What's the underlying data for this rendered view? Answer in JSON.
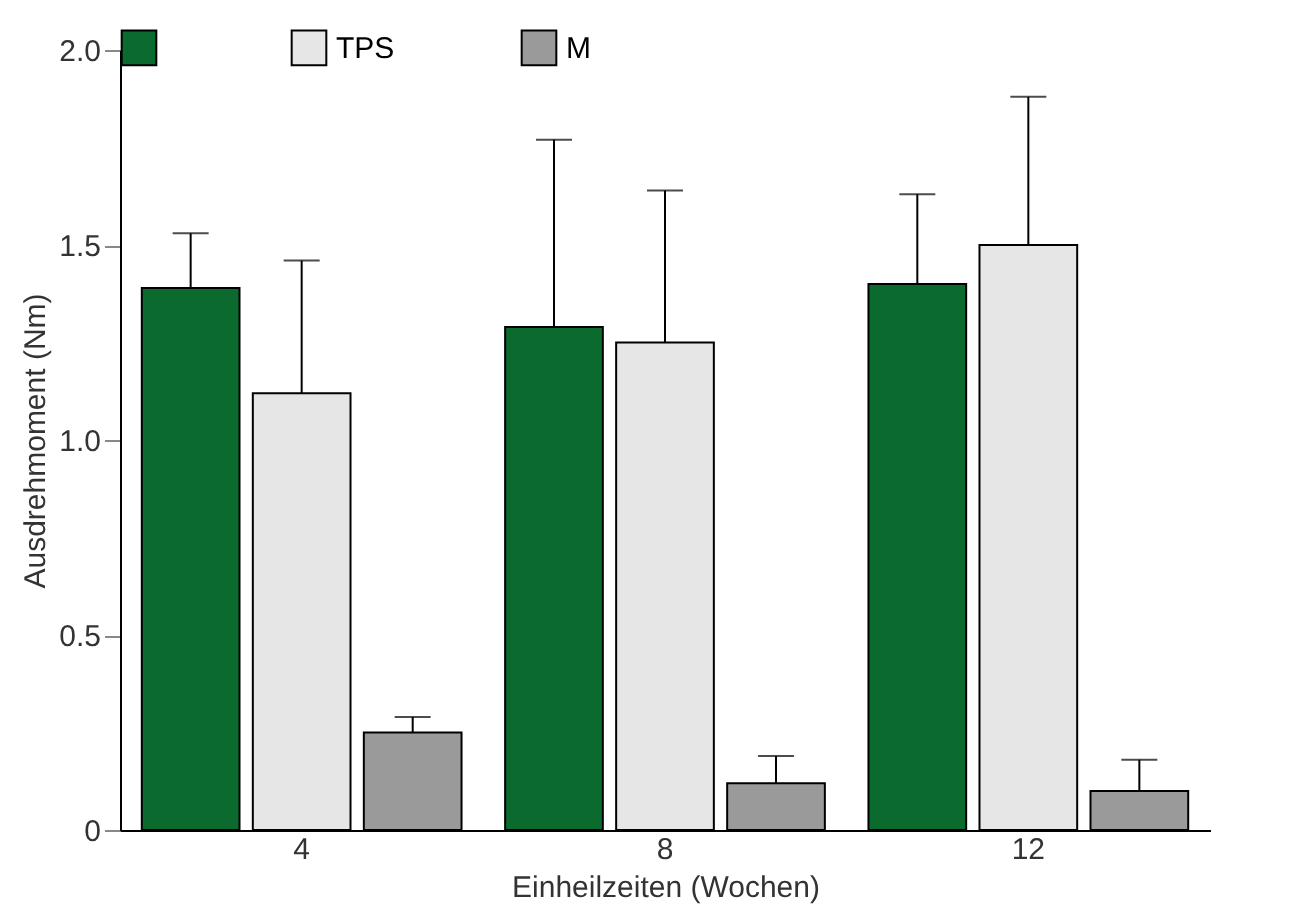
{
  "chart_data": {
    "type": "bar",
    "xlabel": "Einheilzeiten (Wochen)",
    "ylabel": "Ausdrehmoment (Nm)",
    "categories": [
      "4",
      "8",
      "12"
    ],
    "series": [
      {
        "color": "#0b6b2e",
        "values": [
          1.39,
          1.29,
          1.4
        ],
        "errors": [
          [
            1.39,
            1.53
          ],
          [
            1.29,
            1.77
          ],
          [
            1.4,
            1.63
          ]
        ]
      },
      {
        "name": "TPS",
        "color": "#e6e6e6",
        "values": [
          1.12,
          1.25,
          1.5
        ],
        "errors": [
          [
            1.12,
            1.46
          ],
          [
            1.25,
            1.64
          ],
          [
            1.5,
            1.88
          ]
        ]
      },
      {
        "name": "M",
        "color": "#9a9a9a",
        "values": [
          0.25,
          0.12,
          0.1
        ],
        "errors": [
          [
            0.25,
            0.29
          ],
          [
            0.12,
            0.19
          ],
          [
            0.1,
            0.18
          ]
        ]
      }
    ],
    "ylim": [
      0,
      2
    ],
    "yticks": [
      0,
      0.5,
      {
        "value": 1,
        "label": "1.0"
      },
      1.5,
      {
        "value": 2,
        "label": "2.0"
      }
    ],
    "legend": "top",
    "grid": false
  }
}
